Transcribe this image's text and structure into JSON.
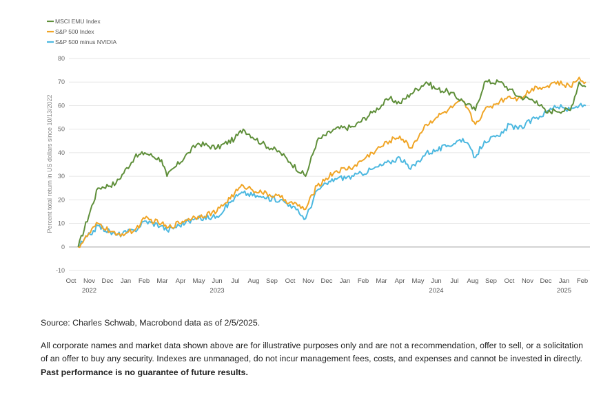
{
  "chart_data": {
    "type": "line",
    "title": "",
    "ylabel": "Percent total return in US dollars since 10/13/2022",
    "xlabel": "",
    "ylim": [
      -10,
      80
    ],
    "yticks": [
      -10,
      0,
      10,
      20,
      30,
      40,
      50,
      60,
      70,
      80
    ],
    "grid": true,
    "legend_position": "top-left",
    "x_month_labels": [
      "Oct",
      "Nov",
      "Dec",
      "Jan",
      "Feb",
      "Mar",
      "Apr",
      "May",
      "Jun",
      "Jul",
      "Aug",
      "Sep",
      "Oct",
      "Nov",
      "Dec",
      "Jan",
      "Feb",
      "Mar",
      "Apr",
      "May",
      "Jun",
      "Jul",
      "Aug",
      "Sep",
      "Oct",
      "Nov",
      "Dec",
      "Jan",
      "Feb"
    ],
    "x_year_labels": [
      {
        "label": "2022",
        "month_index": 1
      },
      {
        "label": "2023",
        "month_index": 8
      },
      {
        "label": "2024",
        "month_index": 20
      },
      {
        "label": "2025",
        "month_index": 27
      }
    ],
    "x": [
      "2022-10-13",
      "2022-11-15",
      "2022-12-15",
      "2023-01-15",
      "2023-02-01",
      "2023-03-01",
      "2023-03-10",
      "2023-04-15",
      "2023-05-01",
      "2023-06-01",
      "2023-07-01",
      "2023-07-15",
      "2023-08-15",
      "2023-09-15",
      "2023-10-01",
      "2023-10-27",
      "2023-11-15",
      "2023-12-15",
      "2024-01-15",
      "2024-02-15",
      "2024-03-15",
      "2024-04-01",
      "2024-04-19",
      "2024-05-15",
      "2024-06-01",
      "2024-06-20",
      "2024-07-15",
      "2024-08-05",
      "2024-08-20",
      "2024-09-15",
      "2024-10-01",
      "2024-10-15",
      "2024-11-15",
      "2024-12-01",
      "2024-12-15",
      "2025-01-10",
      "2025-01-25",
      "2025-02-05"
    ],
    "series": [
      {
        "name": "MSCI EMU Index",
        "color": "#5f8f3a",
        "values": [
          0,
          25,
          27,
          38,
          40,
          37,
          30,
          40,
          44,
          42,
          46,
          50,
          44,
          40,
          36,
          30,
          45,
          50,
          51,
          57,
          63,
          61,
          65,
          70,
          67,
          66,
          62,
          58,
          70,
          70,
          67,
          64,
          62,
          57,
          58,
          58,
          70,
          68
        ]
      },
      {
        "name": "S&P 500 Index",
        "color": "#f0a526",
        "values": [
          0,
          10,
          5,
          7,
          12,
          10,
          8,
          12,
          13,
          15,
          23,
          26,
          23,
          21,
          19,
          16,
          26,
          32,
          34,
          40,
          45,
          47,
          42,
          52,
          55,
          58,
          62,
          52,
          58,
          62,
          64,
          63,
          68,
          68,
          70,
          68,
          72,
          70
        ]
      },
      {
        "name": "S&P 500 minus NVIDIA",
        "color": "#4cb8e0",
        "values": [
          0,
          9,
          5,
          7,
          11,
          9,
          7,
          11,
          12,
          13,
          21,
          23,
          21,
          20,
          18,
          12,
          24,
          29,
          30,
          33,
          36,
          38,
          33,
          40,
          41,
          43,
          46,
          38,
          45,
          47,
          52,
          50,
          55,
          57,
          60,
          58,
          60,
          60
        ]
      }
    ]
  },
  "notes": {
    "source": "Source: Charles Schwab, Macrobond data as of 2/5/2025.",
    "disclaimer": "All corporate names and market data shown above are for illustrative purposes only and are not a recommendation, offer to sell, or a solicitation of an offer to buy any security. Indexes are unmanaged, do not incur management fees, costs, and expenses and cannot be invested in directly.",
    "disclaimer_bold": "Past performance is no guarantee of future results."
  }
}
